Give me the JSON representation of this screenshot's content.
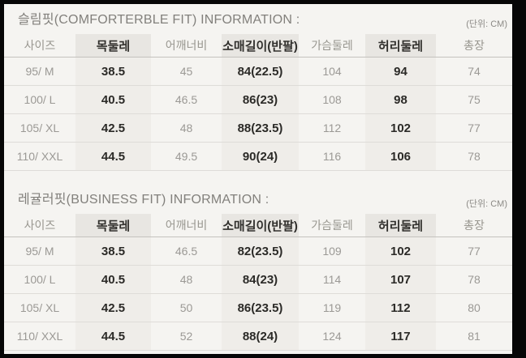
{
  "panel": {
    "background": "#f5f4f1",
    "frame_color": "#060606",
    "highlight_band_header": "#e8e6e2",
    "highlight_band_cell": "#efede9",
    "text_muted": "#9b9995",
    "text_strong": "#2b2a27"
  },
  "chart_data": [
    {
      "type": "table",
      "title": "슬림핏(COMFORTERBLE FIT) INFORMATION :",
      "unit_label": "(단위: CM)",
      "columns": [
        {
          "key": "size",
          "label": "사이즈",
          "highlight": false
        },
        {
          "key": "neck",
          "label": "목둘레",
          "highlight": true
        },
        {
          "key": "shoulder",
          "label": "어깨너비",
          "highlight": false
        },
        {
          "key": "sleeve",
          "label": "소매길이(반팔)",
          "highlight": true
        },
        {
          "key": "chest",
          "label": "가슴둘레",
          "highlight": false
        },
        {
          "key": "waist",
          "label": "허리둘레",
          "highlight": true
        },
        {
          "key": "length",
          "label": "총장",
          "highlight": false
        }
      ],
      "rows": [
        [
          "95/ M",
          "38.5",
          "45",
          "84(22.5)",
          "104",
          "94",
          "74"
        ],
        [
          "100/ L",
          "40.5",
          "46.5",
          "86(23)",
          "108",
          "98",
          "75"
        ],
        [
          "105/ XL",
          "42.5",
          "48",
          "88(23.5)",
          "112",
          "102",
          "77"
        ],
        [
          "110/ XXL",
          "44.5",
          "49.5",
          "90(24)",
          "116",
          "106",
          "78"
        ]
      ]
    },
    {
      "type": "table",
      "title": "레귤러핏(BUSINESS FIT) INFORMATION :",
      "unit_label": "(단위: CM)",
      "columns": [
        {
          "key": "size",
          "label": "사이즈",
          "highlight": false
        },
        {
          "key": "neck",
          "label": "목둘레",
          "highlight": true
        },
        {
          "key": "shoulder",
          "label": "어깨너비",
          "highlight": false
        },
        {
          "key": "sleeve",
          "label": "소매길이(반팔)",
          "highlight": true
        },
        {
          "key": "chest",
          "label": "가슴둘레",
          "highlight": false
        },
        {
          "key": "waist",
          "label": "허리둘레",
          "highlight": true
        },
        {
          "key": "length",
          "label": "총장",
          "highlight": false
        }
      ],
      "rows": [
        [
          "95/ M",
          "38.5",
          "46.5",
          "82(23.5)",
          "109",
          "102",
          "77"
        ],
        [
          "100/ L",
          "40.5",
          "48",
          "84(23)",
          "114",
          "107",
          "78"
        ],
        [
          "105/ XL",
          "42.5",
          "50",
          "86(23.5)",
          "119",
          "112",
          "80"
        ],
        [
          "110/ XXL",
          "44.5",
          "52",
          "88(24)",
          "124",
          "117",
          "81"
        ]
      ]
    }
  ]
}
